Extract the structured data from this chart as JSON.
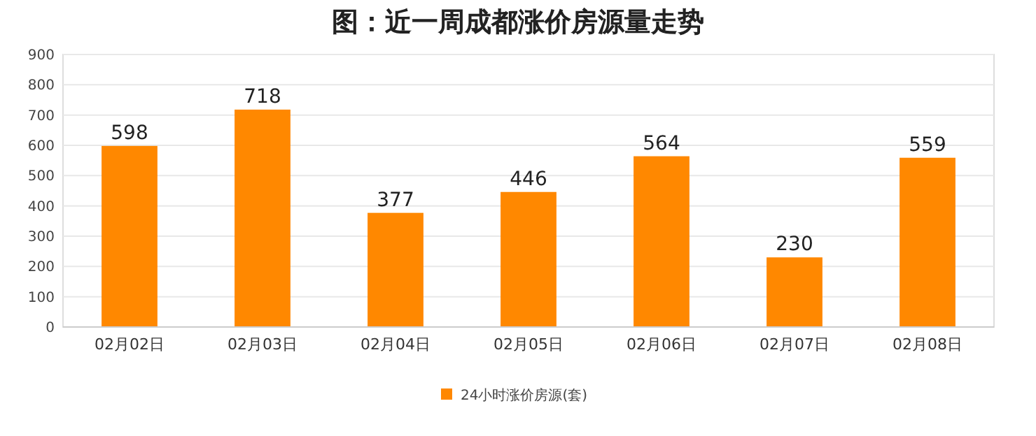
{
  "chart_data": {
    "type": "bar",
    "title": "图：近一周成都涨价房源量走势",
    "categories": [
      "02月02日",
      "02月03日",
      "02月04日",
      "02月05日",
      "02月06日",
      "02月07日",
      "02月08日"
    ],
    "series": [
      {
        "name": "24小时涨价房源(套)",
        "color": "#ff8800",
        "values": [
          598,
          718,
          377,
          446,
          564,
          230,
          559
        ]
      }
    ],
    "ylim": [
      0,
      900
    ],
    "yticks": [
      0,
      100,
      200,
      300,
      400,
      500,
      600,
      700,
      800,
      900
    ],
    "grid": "y",
    "legend": "bottom",
    "data_labels": true
  }
}
